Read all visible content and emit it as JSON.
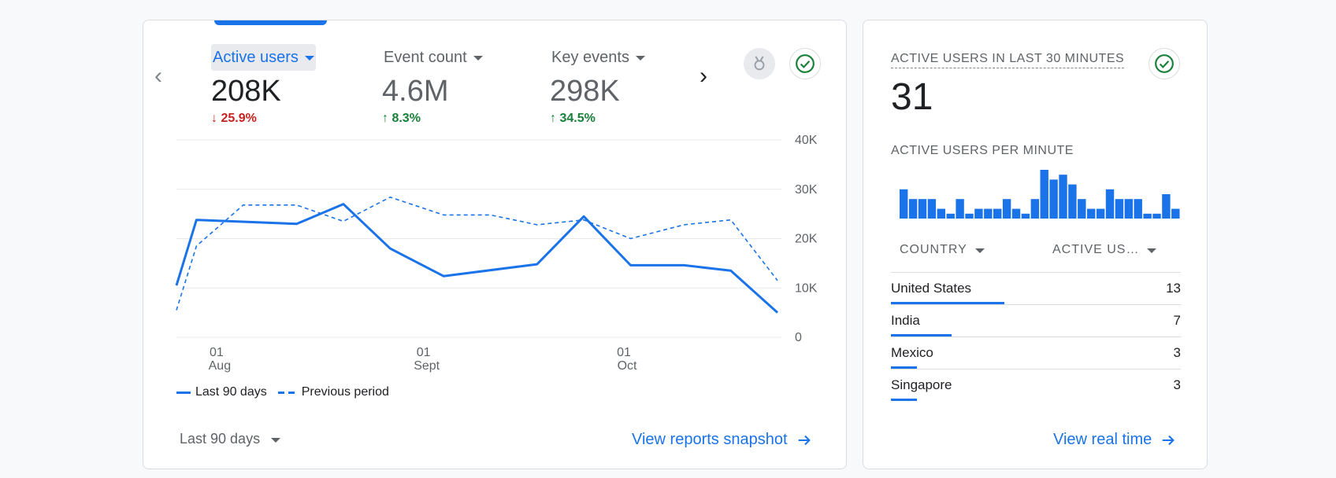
{
  "colors": {
    "accent": "#1a73e8",
    "down": "#c5221f",
    "up": "#188038",
    "grid": "#e8eaed"
  },
  "metrics": [
    {
      "label": "Active users",
      "value": "208K",
      "change": "25.9%",
      "direction": "down",
      "active": true
    },
    {
      "label": "Event count",
      "value": "4.6M",
      "change": "8.3%",
      "direction": "up",
      "active": false
    },
    {
      "label": "Key events",
      "value": "298K",
      "change": "34.5%",
      "direction": "up",
      "active": false
    }
  ],
  "icons": {
    "prev": "chevron-left-icon",
    "next": "chevron-right-icon",
    "badge": "award-ribbon-icon",
    "check": "check-circle-icon"
  },
  "chart_data": {
    "type": "line",
    "y_ticks": [
      "40K",
      "30K",
      "20K",
      "10K",
      "0"
    ],
    "ylim": [
      0,
      40000
    ],
    "x_ticks": [
      {
        "day": "01",
        "month": "Aug",
        "index": 6
      },
      {
        "day": "01",
        "month": "Sept",
        "index": 37
      },
      {
        "day": "01",
        "month": "Oct",
        "index": 67
      }
    ],
    "x_count": 91,
    "series": [
      {
        "name": "Last 90 days",
        "style": "solid",
        "points": [
          [
            0,
            10500
          ],
          [
            3,
            23800
          ],
          [
            18,
            23000
          ],
          [
            25,
            27000
          ],
          [
            32,
            18000
          ],
          [
            40,
            12400
          ],
          [
            54,
            14800
          ],
          [
            61,
            24500
          ],
          [
            68,
            14600
          ],
          [
            76,
            14600
          ],
          [
            83,
            13500
          ],
          [
            90,
            5000
          ]
        ]
      },
      {
        "name": "Previous period",
        "style": "dashed",
        "points": [
          [
            0,
            5500
          ],
          [
            3,
            18500
          ],
          [
            10,
            26800
          ],
          [
            18,
            26800
          ],
          [
            25,
            23500
          ],
          [
            32,
            28400
          ],
          [
            40,
            24800
          ],
          [
            47,
            24800
          ],
          [
            54,
            22800
          ],
          [
            61,
            23800
          ],
          [
            68,
            20000
          ],
          [
            76,
            22800
          ],
          [
            83,
            23800
          ],
          [
            90,
            11500
          ]
        ]
      }
    ],
    "legend": [
      "Last 90 days",
      "Previous period"
    ],
    "grid": true
  },
  "footer": {
    "range_label": "Last 90 days",
    "reports_link": "View reports snapshot"
  },
  "realtime": {
    "title": "ACTIVE USERS IN LAST 30 MINUTES",
    "value": "31",
    "per_minute_title": "ACTIVE USERS PER MINUTE",
    "per_minute": [
      3,
      2,
      2,
      2,
      1,
      0.5,
      2,
      0.5,
      1,
      1,
      1,
      2,
      1,
      0.5,
      2,
      5,
      4,
      4.5,
      3.5,
      2,
      1,
      1,
      3,
      2,
      2,
      2,
      0.5,
      0.5,
      2.5,
      1
    ],
    "col_country": "COUNTRY",
    "col_active": "ACTIVE US…",
    "rows": [
      {
        "country": "United States",
        "count": "13",
        "fraction": 0.39
      },
      {
        "country": "India",
        "count": "7",
        "fraction": 0.21
      },
      {
        "country": "Mexico",
        "count": "3",
        "fraction": 0.09
      },
      {
        "country": "Singapore",
        "count": "3",
        "fraction": 0.09
      }
    ],
    "link": "View real time"
  }
}
